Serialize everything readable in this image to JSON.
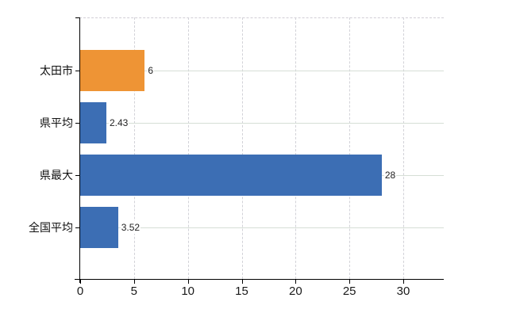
{
  "chart_data": {
    "type": "bar",
    "orientation": "horizontal",
    "title": "",
    "categories": [
      "太田市",
      "県平均",
      "県最大",
      "全国平均"
    ],
    "values": [
      6,
      2.43,
      28,
      3.52
    ],
    "value_labels": [
      "6",
      "2.43",
      "28",
      "3.52"
    ],
    "bar_colors": [
      "#ee9435",
      "#3c6eb4",
      "#3c6eb4",
      "#3c6eb4"
    ],
    "x_ticks": [
      0,
      5,
      10,
      15,
      20,
      25,
      30
    ],
    "x_tick_labels": [
      "0",
      "5",
      "10",
      "15",
      "20",
      "25",
      "30"
    ],
    "xlim": [
      0,
      33.75
    ],
    "xlabel": "",
    "ylabel": "",
    "legend_position": "none",
    "grid": {
      "vertical": "dashed",
      "horizontal": "solid-at-category-centers"
    },
    "colors": {
      "highlight_bar": "#ee9435",
      "default_bar": "#3c6eb4",
      "grid_vertical": "#d2d2d8",
      "grid_horizontal": "#d6ded6",
      "axis": "#000000",
      "tick_text": "#1a1a1a",
      "value_text": "#222222",
      "background": "#ffffff"
    }
  }
}
